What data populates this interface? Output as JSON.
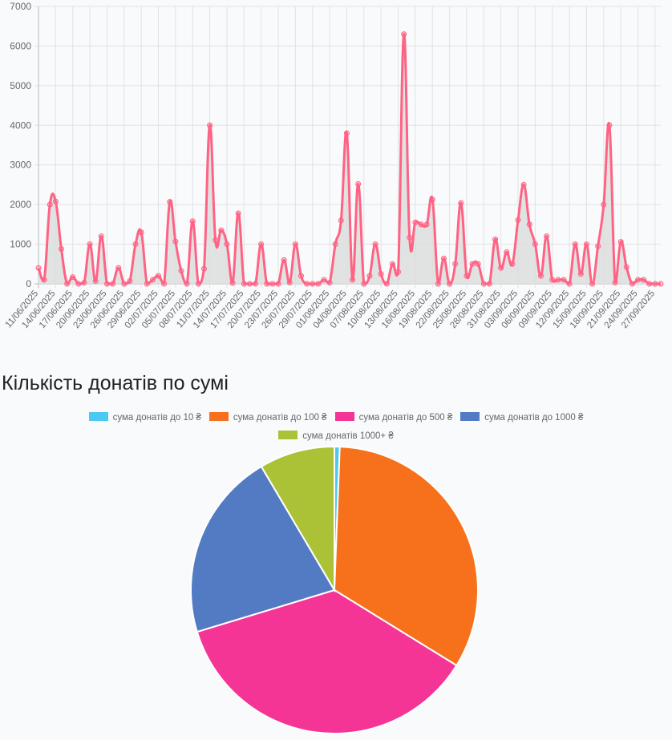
{
  "chart_data": [
    {
      "type": "area",
      "title": "",
      "ylim": [
        0,
        7000
      ],
      "yticks": [
        0,
        1000,
        2000,
        3000,
        4000,
        5000,
        6000,
        7000
      ],
      "grid": true,
      "start_date": "11/06/2025",
      "tick_labels": [
        "11/06/2025",
        "14/06/2025",
        "17/06/2025",
        "20/06/2025",
        "23/06/2025",
        "26/06/2025",
        "29/06/2025",
        "02/07/2025",
        "05/07/2025",
        "08/07/2025",
        "11/07/2025",
        "14/07/2025",
        "17/07/2025",
        "20/07/2025",
        "23/07/2025",
        "26/07/2025",
        "29/07/2025",
        "01/08/2025",
        "04/08/2025",
        "07/08/2025",
        "10/08/2025",
        "13/08/2025",
        "16/08/2025",
        "19/08/2025",
        "22/08/2025",
        "25/08/2025",
        "28/08/2025",
        "31/08/2025",
        "03/09/2025",
        "06/09/2025",
        "09/09/2025",
        "12/09/2025",
        "15/09/2025",
        "18/09/2025",
        "21/09/2025",
        "24/09/2025",
        "27/09/2025"
      ],
      "values": [
        400,
        100,
        2000,
        2080,
        880,
        0,
        170,
        0,
        30,
        1000,
        70,
        1200,
        0,
        0,
        400,
        0,
        70,
        1000,
        1300,
        0,
        100,
        200,
        0,
        2070,
        1070,
        330,
        0,
        1580,
        0,
        380,
        4000,
        1100,
        1350,
        1000,
        20,
        1780,
        0,
        0,
        0,
        1000,
        0,
        0,
        0,
        600,
        30,
        1000,
        200,
        0,
        0,
        0,
        100,
        30,
        1000,
        1600,
        3800,
        100,
        2520,
        0,
        200,
        1000,
        250,
        0,
        500,
        300,
        6300,
        1170,
        1550,
        1500,
        1500,
        2130,
        0,
        640,
        0,
        500,
        2040,
        200,
        500,
        500,
        0,
        0,
        1120,
        400,
        800,
        500,
        1610,
        2500,
        1500,
        1000,
        200,
        1200,
        100,
        100,
        100,
        0,
        1000,
        250,
        1000,
        0,
        950,
        2000,
        4000,
        30,
        1060,
        420,
        0,
        100,
        100,
        0,
        0,
        0
      ],
      "line_color": "#ff6384",
      "fill_color": "#dddddd"
    },
    {
      "type": "pie",
      "title": "Кількість донатів по сумі",
      "legend_position": "top",
      "labels": [
        "сума донатів до 10 ₴",
        "сума донатів до 100 ₴",
        "сума донатів до 500 ₴",
        "сума донатів до 1000 ₴",
        "сума донатів 1000+ ₴"
      ],
      "values": [
        0.6,
        33.2,
        36.5,
        21.2,
        8.5
      ],
      "colors": [
        "#4bc9f0",
        "#f7711c",
        "#f53596",
        "#527bc4",
        "#acc236"
      ]
    }
  ]
}
